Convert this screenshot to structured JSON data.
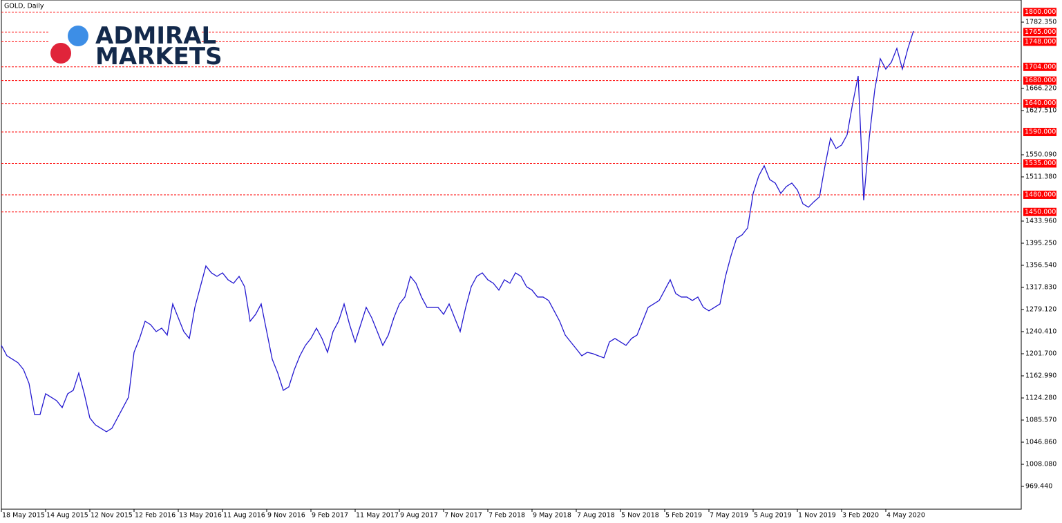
{
  "chart_data": {
    "type": "line",
    "title": "GOLD, Daily",
    "logo": [
      "ADMIRAL",
      "MARKETS"
    ],
    "color": "#2318d0",
    "level_color": "#ff0000",
    "ylim": [
      929.5,
      1821.1
    ],
    "yticks": [
      {
        "value": 969.44,
        "label": "969.440"
      },
      {
        "value": 1008.08,
        "label": "1008.080"
      },
      {
        "value": 1046.86,
        "label": "1046.860"
      },
      {
        "value": 1085.57,
        "label": "1085.570"
      },
      {
        "value": 1124.28,
        "label": "1124.280"
      },
      {
        "value": 1162.99,
        "label": "1162.990"
      },
      {
        "value": 1201.7,
        "label": "1201.700"
      },
      {
        "value": 1240.41,
        "label": "1240.410"
      },
      {
        "value": 1279.12,
        "label": "1279.120"
      },
      {
        "value": 1317.83,
        "label": "1317.830"
      },
      {
        "value": 1356.54,
        "label": "1356.540"
      },
      {
        "value": 1395.25,
        "label": "1395.250"
      },
      {
        "value": 1433.96,
        "label": "1433.960"
      },
      {
        "value": 1511.38,
        "label": "1511.380"
      },
      {
        "value": 1550.09,
        "label": "1550.090"
      },
      {
        "value": 1627.51,
        "label": "1627.510"
      },
      {
        "value": 1666.22,
        "label": "1666.220"
      },
      {
        "value": 1782.35,
        "label": "1782.350"
      }
    ],
    "levels": [
      {
        "value": 1800,
        "label": "1800.000"
      },
      {
        "value": 1765,
        "label": "1765.000"
      },
      {
        "value": 1748,
        "label": "1748.000"
      },
      {
        "value": 1704,
        "label": "1704.000"
      },
      {
        "value": 1680,
        "label": "1680.000"
      },
      {
        "value": 1640,
        "label": "1640.000"
      },
      {
        "value": 1590,
        "label": "1590.000"
      },
      {
        "value": 1535,
        "label": "1535.000"
      },
      {
        "value": 1480,
        "label": "1480.000"
      },
      {
        "value": 1450,
        "label": "1450.000"
      }
    ],
    "categories": [
      "18 May 2015",
      null,
      null,
      null,
      null,
      null,
      null,
      null,
      "14 Aug 2015",
      null,
      null,
      null,
      null,
      null,
      null,
      null,
      "12 Nov 2015",
      null,
      null,
      null,
      null,
      null,
      null,
      null,
      "12 Feb 2016",
      null,
      null,
      null,
      null,
      null,
      null,
      null,
      "13 May 2016",
      null,
      null,
      null,
      null,
      null,
      null,
      null,
      "11 Aug 2016",
      null,
      null,
      null,
      null,
      null,
      null,
      null,
      "9 Nov 2016",
      null,
      null,
      null,
      null,
      null,
      null,
      null,
      "9 Feb 2017",
      null,
      null,
      null,
      null,
      null,
      null,
      null,
      "11 May 2017",
      null,
      null,
      null,
      null,
      null,
      null,
      null,
      "9 Aug 2017",
      null,
      null,
      null,
      null,
      null,
      null,
      null,
      "7 Nov 2017",
      null,
      null,
      null,
      null,
      null,
      null,
      null,
      "7 Feb 2018",
      null,
      null,
      null,
      null,
      null,
      null,
      null,
      "9 May 2018",
      null,
      null,
      null,
      null,
      null,
      null,
      null,
      "7 Aug 2018",
      null,
      null,
      null,
      null,
      null,
      null,
      null,
      "5 Nov 2018",
      null,
      null,
      null,
      null,
      null,
      null,
      null,
      "5 Feb 2019",
      null,
      null,
      null,
      null,
      null,
      null,
      null,
      "7 May 2019",
      null,
      null,
      null,
      null,
      null,
      null,
      null,
      "5 Aug 2019",
      null,
      null,
      null,
      null,
      null,
      null,
      null,
      "1 Nov 2019",
      null,
      null,
      null,
      null,
      null,
      null,
      null,
      "3 Feb 2020",
      null,
      null,
      null,
      null,
      null,
      null,
      null,
      "4 May 2020",
      null,
      null,
      null,
      null,
      null
    ],
    "values": [
      1216.3,
      1198.1,
      1192.1,
      1186.0,
      1174.0,
      1149.8,
      1095.3,
      1095.3,
      1131.6,
      1125.5,
      1119.5,
      1107.4,
      1131.6,
      1137.6,
      1167.9,
      1131.6,
      1089.3,
      1077.2,
      1071.1,
      1065.1,
      1071.1,
      1089.3,
      1107.4,
      1125.5,
      1204.2,
      1228.4,
      1258.6,
      1252.5,
      1240.5,
      1246.5,
      1234.4,
      1288.9,
      1264.6,
      1240.5,
      1228.4,
      1282.8,
      1319.1,
      1355.4,
      1343.3,
      1337.2,
      1343.3,
      1331.2,
      1325.1,
      1337.2,
      1319.1,
      1258.6,
      1270.7,
      1288.9,
      1240.5,
      1192.1,
      1167.9,
      1137.6,
      1143.7,
      1174.0,
      1198.1,
      1216.3,
      1228.4,
      1246.5,
      1228.4,
      1204.2,
      1240.5,
      1258.6,
      1288.9,
      1252.5,
      1222.3,
      1252.5,
      1282.8,
      1264.6,
      1240.5,
      1216.3,
      1234.4,
      1264.6,
      1288.9,
      1301.0,
      1337.2,
      1325.1,
      1301.0,
      1282.8,
      1282.8,
      1282.8,
      1270.7,
      1288.9,
      1264.6,
      1240.5,
      1282.8,
      1319.1,
      1337.2,
      1343.3,
      1331.2,
      1325.1,
      1313.1,
      1331.2,
      1325.1,
      1343.3,
      1337.2,
      1319.1,
      1313.1,
      1301.0,
      1301.0,
      1294.9,
      1276.8,
      1258.6,
      1234.4,
      1222.3,
      1210.3,
      1198.1,
      1204.2,
      1201.8,
      1198.1,
      1194.5,
      1222.3,
      1228.4,
      1222.3,
      1216.3,
      1228.4,
      1234.4,
      1258.6,
      1282.8,
      1288.9,
      1294.9,
      1313.1,
      1331.2,
      1307.0,
      1301.0,
      1301.0,
      1294.9,
      1301.0,
      1282.8,
      1276.8,
      1282.8,
      1288.9,
      1337.2,
      1373.5,
      1403.8,
      1409.8,
      1421.9,
      1482.4,
      1512.7,
      1530.8,
      1506.6,
      1500.5,
      1482.4,
      1494.5,
      1500.5,
      1488.5,
      1464.3,
      1458.2,
      1467.9,
      1476.4,
      1530.8,
      1579.2,
      1561.0,
      1567.1,
      1585.2,
      1639.7,
      1688.0,
      1470.3,
      1579.2,
      1663.9,
      1718.3,
      1700.1,
      1712.2,
      1736.4,
      1700.1,
      1736.4,
      1766.7
    ]
  }
}
